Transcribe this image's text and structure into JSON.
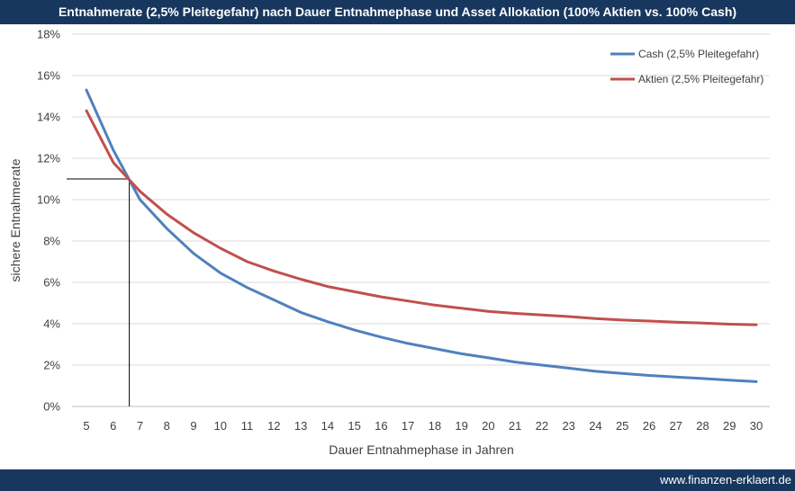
{
  "header": {
    "title": "Entnahmerate (2,5% Pleitegefahr) nach Dauer Entnahmephase und Asset Allokation (100% Aktien vs. 100% Cash)"
  },
  "footer": {
    "website": "www.finanzen-erklaert.de"
  },
  "chart_data": {
    "type": "line",
    "title": "Entnahmerate (2,5% Pleitegefahr) nach Dauer Entnahmephase und Asset Allokation (100% Aktien vs. 100% Cash)",
    "xlabel": "Dauer Entnahmephase in Jahren",
    "ylabel": "sichere Entnahmerate",
    "x": [
      5,
      6,
      7,
      8,
      9,
      10,
      11,
      12,
      13,
      14,
      15,
      16,
      17,
      18,
      19,
      20,
      21,
      22,
      23,
      24,
      25,
      26,
      27,
      28,
      29,
      30
    ],
    "x_ticks": [
      "5",
      "6",
      "7",
      "8",
      "9",
      "10",
      "11",
      "12",
      "13",
      "14",
      "15",
      "16",
      "17",
      "18",
      "19",
      "20",
      "21",
      "22",
      "23",
      "24",
      "25",
      "26",
      "27",
      "28",
      "29",
      "30"
    ],
    "ylim": [
      0,
      18
    ],
    "y_ticks": [
      0,
      2,
      4,
      6,
      8,
      10,
      12,
      14,
      16,
      18
    ],
    "y_tick_labels": [
      "0%",
      "2%",
      "4%",
      "6%",
      "8%",
      "10%",
      "12%",
      "14%",
      "16%",
      "18%"
    ],
    "grid": true,
    "legend_position": "top-right",
    "series": [
      {
        "name": "Cash (2,5% Pleitegefahr)",
        "color": "#4f81bd",
        "values": [
          15.3,
          12.4,
          10.0,
          8.6,
          7.4,
          6.45,
          5.75,
          5.15,
          4.55,
          4.1,
          3.7,
          3.35,
          3.05,
          2.8,
          2.55,
          2.35,
          2.15,
          2.0,
          1.85,
          1.7,
          1.6,
          1.5,
          1.42,
          1.35,
          1.27,
          1.2
        ]
      },
      {
        "name": "Aktien (2,5% Pleitegefahr)",
        "color": "#c0504d",
        "values": [
          14.3,
          11.8,
          10.4,
          9.3,
          8.4,
          7.65,
          7.0,
          6.55,
          6.15,
          5.8,
          5.55,
          5.3,
          5.1,
          4.9,
          4.75,
          4.6,
          4.5,
          4.42,
          4.35,
          4.25,
          4.18,
          4.13,
          4.08,
          4.03,
          3.98,
          3.95
        ]
      }
    ],
    "annotation": {
      "x": 6.6,
      "y": 11.0,
      "style": "crosshair-lines",
      "color": "#000000"
    }
  }
}
